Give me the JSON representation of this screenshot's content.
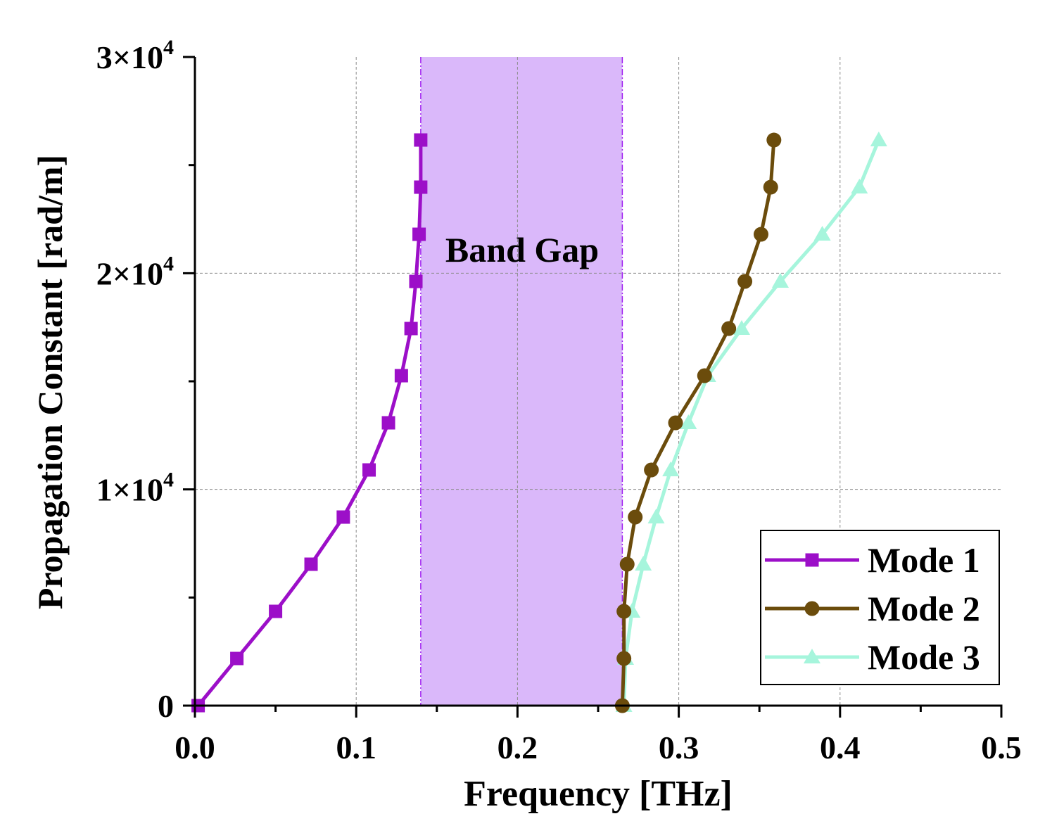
{
  "chart_data": {
    "type": "line",
    "title": "",
    "xlabel": "Frequency [THz]",
    "ylabel": "Propagation Constant [rad/m]",
    "xlim": [
      0,
      0.5
    ],
    "ylim": [
      0,
      30000
    ],
    "x_ticks": [
      {
        "value": 0.0,
        "label": "0.0"
      },
      {
        "value": 0.1,
        "label": "0.1"
      },
      {
        "value": 0.2,
        "label": "0.2"
      },
      {
        "value": 0.3,
        "label": "0.3"
      },
      {
        "value": 0.4,
        "label": "0.4"
      },
      {
        "value": 0.5,
        "label": "0.5"
      }
    ],
    "y_ticks": [
      {
        "value": 0,
        "mant": "0",
        "exp": ""
      },
      {
        "value": 10000,
        "mant": "1×10",
        "exp": "4"
      },
      {
        "value": 20000,
        "mant": "2×10",
        "exp": "4"
      },
      {
        "value": 30000,
        "mant": "3×10",
        "exp": "4"
      }
    ],
    "grid": true,
    "band_gap": {
      "label": "Band Gap",
      "x_start": 0.14,
      "x_end": 0.265,
      "color": "#dab8fa",
      "edge_color": "#a020f0"
    },
    "legend_position": "bottom-right",
    "series": [
      {
        "name": "Mode 1",
        "color": "#9c0fc8",
        "marker": "square",
        "points": [
          [
            0.002,
            0
          ],
          [
            0.026,
            2180
          ],
          [
            0.05,
            4360
          ],
          [
            0.072,
            6540
          ],
          [
            0.092,
            8720
          ],
          [
            0.108,
            10900
          ],
          [
            0.12,
            13080
          ],
          [
            0.128,
            15260
          ],
          [
            0.134,
            17440
          ],
          [
            0.137,
            19620
          ],
          [
            0.139,
            21800
          ],
          [
            0.14,
            23980
          ],
          [
            0.14,
            26160
          ]
        ]
      },
      {
        "name": "Mode 2",
        "color": "#6b4c0c",
        "marker": "circle",
        "points": [
          [
            0.265,
            0
          ],
          [
            0.266,
            2180
          ],
          [
            0.266,
            4360
          ],
          [
            0.268,
            6540
          ],
          [
            0.273,
            8720
          ],
          [
            0.283,
            10900
          ],
          [
            0.298,
            13080
          ],
          [
            0.316,
            15260
          ],
          [
            0.331,
            17440
          ],
          [
            0.341,
            19620
          ],
          [
            0.351,
            21800
          ],
          [
            0.357,
            23980
          ],
          [
            0.359,
            26160
          ]
        ]
      },
      {
        "name": "Mode 3",
        "color": "#a6f5dc",
        "marker": "triangle",
        "points": [
          [
            0.266,
            0
          ],
          [
            0.267,
            2180
          ],
          [
            0.271,
            4360
          ],
          [
            0.278,
            6540
          ],
          [
            0.286,
            8720
          ],
          [
            0.295,
            10900
          ],
          [
            0.306,
            13080
          ],
          [
            0.318,
            15260
          ],
          [
            0.339,
            17440
          ],
          [
            0.363,
            19620
          ],
          [
            0.389,
            21800
          ],
          [
            0.412,
            23980
          ],
          [
            0.424,
            26160
          ]
        ]
      }
    ]
  }
}
